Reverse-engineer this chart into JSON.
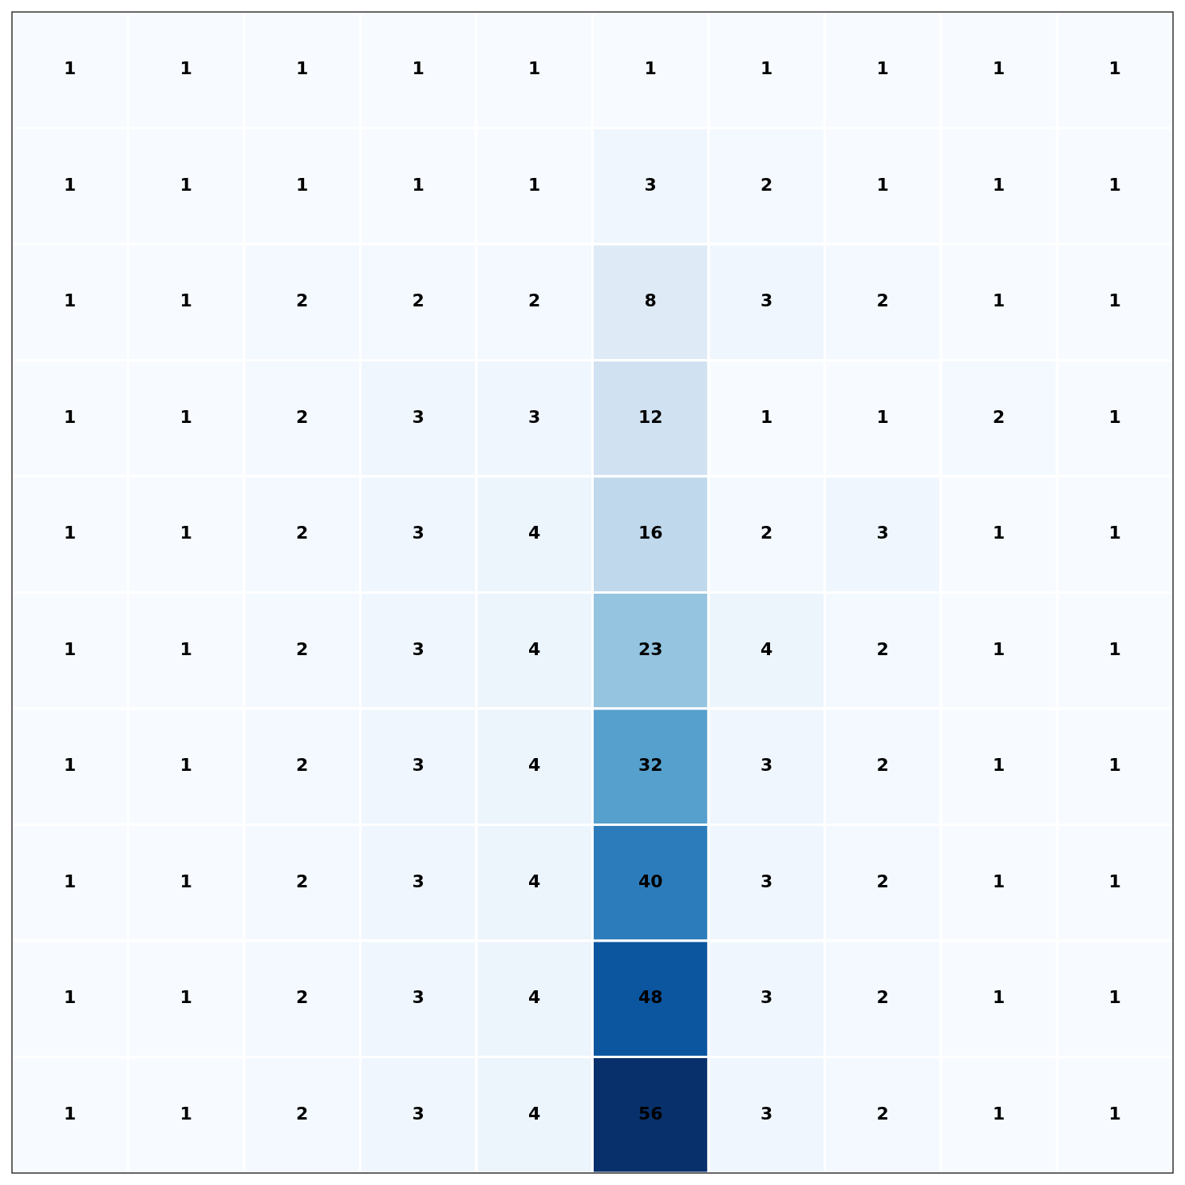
{
  "chart_data": {
    "type": "heatmap",
    "categories": [
      null,
      null,
      null,
      null,
      null,
      null,
      null,
      null,
      null,
      null
    ],
    "y_categories": [
      null,
      null,
      null,
      null,
      null,
      null,
      null,
      null,
      null,
      null
    ],
    "cells": [
      [
        1,
        1,
        1,
        1,
        1,
        1,
        1,
        1,
        1,
        1
      ],
      [
        1,
        1,
        1,
        1,
        1,
        3,
        2,
        1,
        1,
        1
      ],
      [
        1,
        1,
        2,
        2,
        2,
        8,
        3,
        2,
        1,
        1
      ],
      [
        1,
        1,
        2,
        3,
        3,
        12,
        1,
        1,
        2,
        1
      ],
      [
        1,
        1,
        2,
        3,
        4,
        16,
        2,
        3,
        1,
        1
      ],
      [
        1,
        1,
        2,
        3,
        4,
        23,
        4,
        2,
        1,
        1
      ],
      [
        1,
        1,
        2,
        3,
        4,
        32,
        3,
        2,
        1,
        1
      ],
      [
        1,
        1,
        2,
        3,
        4,
        40,
        3,
        2,
        1,
        1
      ],
      [
        1,
        1,
        2,
        3,
        4,
        48,
        3,
        2,
        1,
        1
      ],
      [
        1,
        1,
        2,
        3,
        4,
        56,
        3,
        2,
        1,
        1
      ]
    ],
    "data_labels": true
  }
}
